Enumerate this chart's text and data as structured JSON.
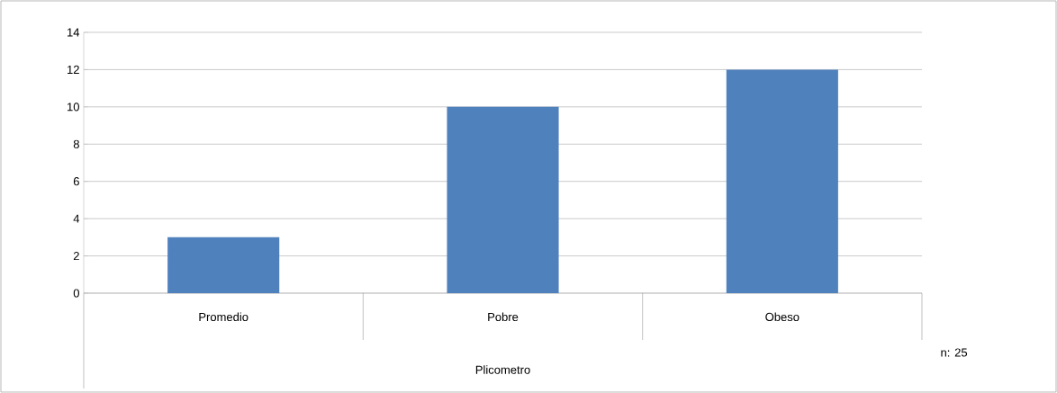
{
  "chart_data": {
    "type": "bar",
    "xlabel": "Plicometro",
    "categories": [
      "Promedio",
      "Pobre",
      "Obeso"
    ],
    "values": [
      3,
      10,
      12
    ],
    "color": "#4f81bd",
    "ylim": [
      0,
      14
    ],
    "yticks": [
      0,
      2,
      4,
      6,
      8,
      10,
      12,
      14
    ],
    "grid": "y",
    "annotations": [
      "n: 25"
    ]
  }
}
